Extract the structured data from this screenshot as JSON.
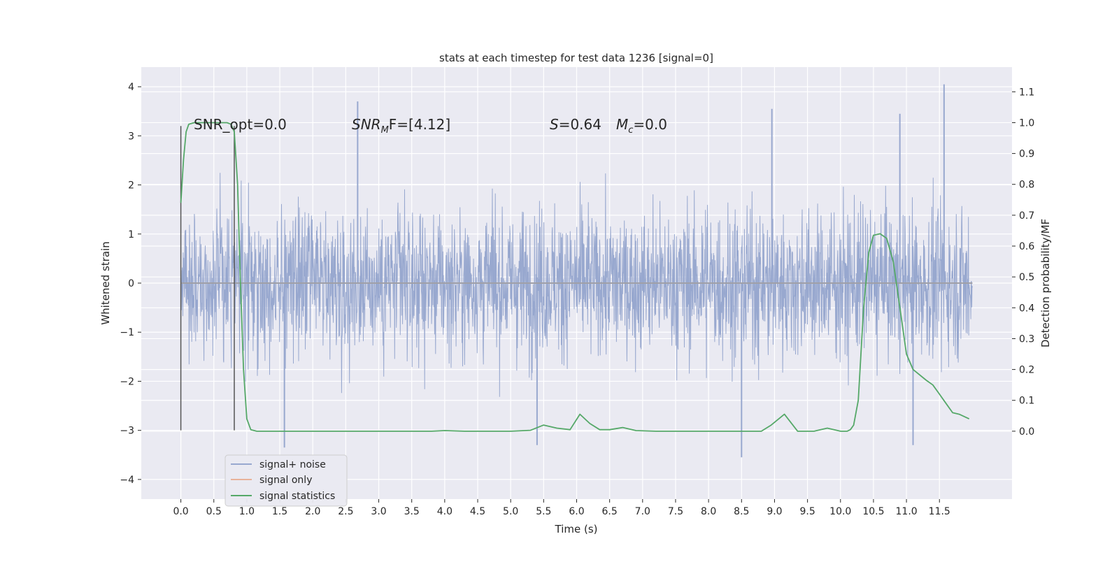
{
  "chart_data": {
    "type": "line",
    "title": "stats at each timestep for test data 1236 [signal=0]",
    "xlabel": "Time (s)",
    "ylabel": "Whitened strain",
    "ylabel_right": "Detection probability/MF",
    "xlim": [
      -0.6,
      12.6
    ],
    "ylim": [
      -4.4,
      4.4
    ],
    "ylim_right": [
      -0.22,
      1.18
    ],
    "x_ticks": [
      0.0,
      0.5,
      1.0,
      1.5,
      2.0,
      2.5,
      3.0,
      3.5,
      4.0,
      4.5,
      5.0,
      5.5,
      6.0,
      6.5,
      7.0,
      7.5,
      8.0,
      8.5,
      9.0,
      9.5,
      10.0,
      10.5,
      11.0,
      11.5
    ],
    "x_tick_labels": [
      "0.0",
      "0.5",
      "1.0",
      "1.5",
      "2.0",
      "2.5",
      "3.0",
      "3.5",
      "4.0",
      "4.5",
      "5.0",
      "5.5",
      "6.0",
      "6.5",
      "7.0",
      "7.5",
      "8.0",
      "8.5",
      "9.0",
      "9.5",
      "10.0",
      "10.5",
      "11.0",
      "11.5"
    ],
    "y_ticks": [
      -4,
      -3,
      -2,
      -1,
      0,
      1,
      2,
      3,
      4
    ],
    "y_tick_labels": [
      "−4",
      "−3",
      "−2",
      "−1",
      "0",
      "1",
      "2",
      "3",
      "4"
    ],
    "y_right_ticks": [
      0.0,
      0.1,
      0.2,
      0.3,
      0.4,
      0.5,
      0.6,
      0.7,
      0.8,
      0.9,
      1.0,
      1.1
    ],
    "y_right_tick_labels": [
      "0.0",
      "0.1",
      "0.2",
      "0.3",
      "0.4",
      "0.5",
      "0.6",
      "0.7",
      "0.8",
      "0.9",
      "1.0",
      "1.1"
    ],
    "grid": true,
    "legend_position": "lower-left",
    "annotations": {
      "snr_opt": "SNR_opt=0.0",
      "snr_mf_main": "SNR",
      "snr_mf_sub": "M",
      "snr_mf_rest": "F=[4.12]",
      "s_main": "S",
      "s_rest": "=0.64",
      "mc_main": "M",
      "mc_sub": "c",
      "mc_rest": "=0.0"
    },
    "markers": [
      {
        "x": 0.0,
        "y_range": [
          -3.0,
          3.2
        ]
      },
      {
        "x": 0.81,
        "y_range": [
          -3.0,
          3.2
        ]
      }
    ],
    "series": [
      {
        "name": "signal+ noise",
        "color": "#98a8cf",
        "x_range": [
          0.0,
          12.0
        ],
        "envelope_typical": [
          -1.8,
          1.8
        ],
        "peaks": [
          {
            "x": 11.57,
            "y": 4.05
          },
          {
            "x": 2.68,
            "y": 3.7
          },
          {
            "x": 8.96,
            "y": 3.55
          },
          {
            "x": 10.9,
            "y": 3.45
          },
          {
            "x": 8.5,
            "y": -3.55
          },
          {
            "x": 1.57,
            "y": -3.35
          },
          {
            "x": 11.1,
            "y": -3.3
          },
          {
            "x": 5.4,
            "y": -3.3
          }
        ]
      },
      {
        "name": "signal only",
        "color": "#dd8452",
        "x": [
          0.0,
          12.0
        ],
        "y": [
          0.0,
          0.0
        ]
      },
      {
        "name": "signal statistics",
        "color": "#55a868",
        "axis": "right",
        "x": [
          0.0,
          0.04,
          0.08,
          0.12,
          0.2,
          0.3,
          0.4,
          0.5,
          0.6,
          0.7,
          0.76,
          0.81,
          0.86,
          0.9,
          0.95,
          1.0,
          1.06,
          1.15,
          1.5,
          2.0,
          2.5,
          3.0,
          3.5,
          3.8,
          4.0,
          4.3,
          5.0,
          5.3,
          5.5,
          5.7,
          5.9,
          6.05,
          6.2,
          6.35,
          6.5,
          6.7,
          6.9,
          7.2,
          7.6,
          8.0,
          8.5,
          8.8,
          8.95,
          9.15,
          9.35,
          9.6,
          9.8,
          10.0,
          10.1,
          10.15,
          10.2,
          10.27,
          10.35,
          10.43,
          10.5,
          10.6,
          10.7,
          10.8,
          10.9,
          11.0,
          11.1,
          11.3,
          11.4,
          11.5,
          11.6,
          11.7,
          11.8,
          11.95
        ],
        "y": [
          0.74,
          0.88,
          0.97,
          0.995,
          1.0,
          1.0,
          1.0,
          1.0,
          1.0,
          1.0,
          0.995,
          0.97,
          0.8,
          0.5,
          0.2,
          0.04,
          0.005,
          0.0,
          0.0,
          0.0,
          0.0,
          0.0,
          0.0,
          0.0,
          0.002,
          0.0,
          0.0,
          0.003,
          0.02,
          0.01,
          0.005,
          0.055,
          0.025,
          0.005,
          0.005,
          0.012,
          0.002,
          0.0,
          0.0,
          0.0,
          0.0,
          0.0,
          0.02,
          0.055,
          0.0,
          0.0,
          0.01,
          0.0,
          0.0,
          0.005,
          0.02,
          0.1,
          0.4,
          0.58,
          0.635,
          0.64,
          0.625,
          0.55,
          0.4,
          0.25,
          0.2,
          0.165,
          0.15,
          0.12,
          0.09,
          0.06,
          0.055,
          0.04
        ]
      }
    ]
  }
}
